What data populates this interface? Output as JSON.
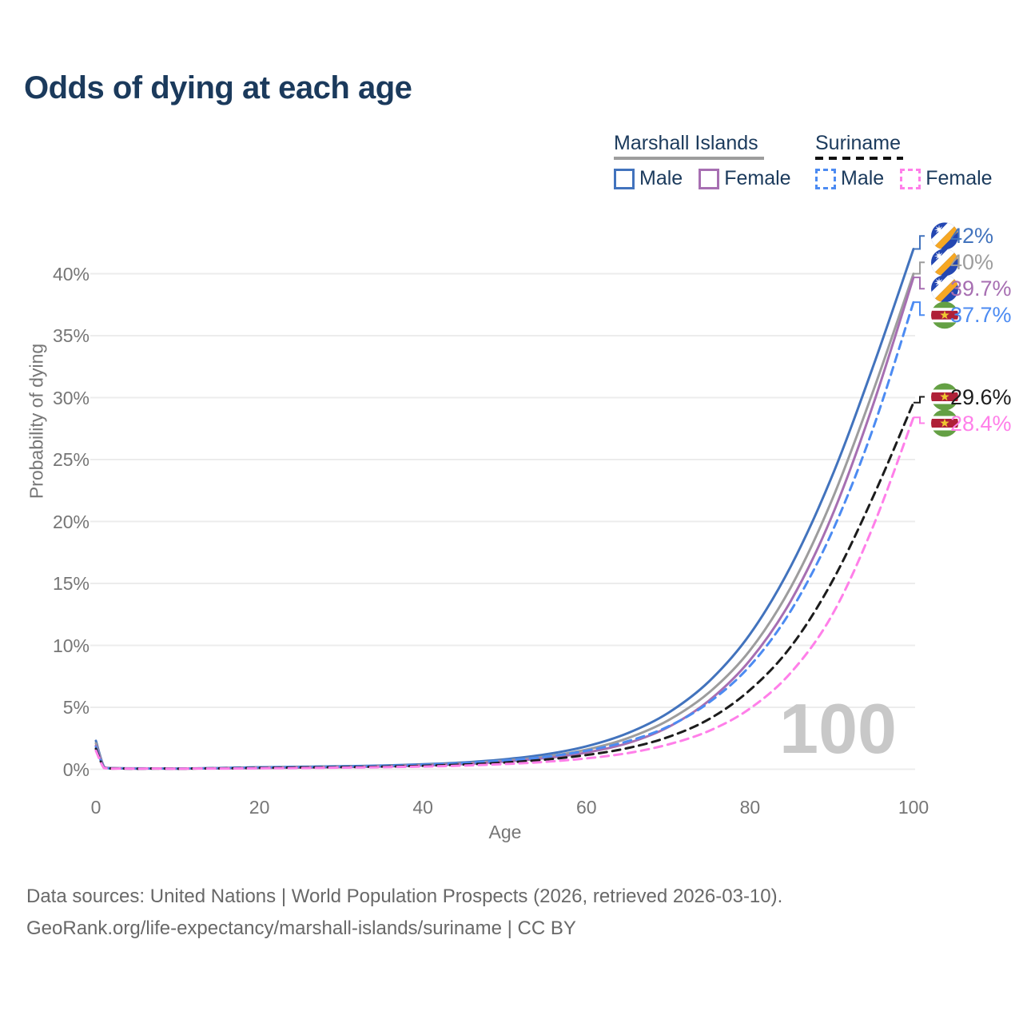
{
  "title": "Odds of dying at each age",
  "legend": {
    "groups": [
      {
        "label": "Marshall Islands",
        "underline": "solid",
        "items": [
          {
            "label": "Male"
          },
          {
            "label": "Female"
          }
        ]
      },
      {
        "label": "Suriname",
        "underline": "dashed",
        "items": [
          {
            "label": "Male"
          },
          {
            "label": "Female"
          }
        ]
      }
    ]
  },
  "chart_data": {
    "type": "line",
    "title": "Odds of dying at each age",
    "xlabel": "Age",
    "ylabel": "Probability of dying",
    "xlim": [
      0,
      100
    ],
    "ylim": [
      0,
      45
    ],
    "x_ticks": [
      0,
      20,
      40,
      60,
      80,
      100
    ],
    "y_ticks": [
      {
        "v": 0,
        "label": "0%"
      },
      {
        "v": 5,
        "label": "5%"
      },
      {
        "v": 10,
        "label": "10%"
      },
      {
        "v": 15,
        "label": "15%"
      },
      {
        "v": 20,
        "label": "20%"
      },
      {
        "v": 25,
        "label": "25%"
      },
      {
        "v": 30,
        "label": "30%"
      },
      {
        "v": 35,
        "label": "35%"
      },
      {
        "v": 40,
        "label": "40%"
      }
    ],
    "grid": "horizontal",
    "legend_position": "top-right",
    "watermark": "100",
    "x": [
      0,
      1,
      2,
      5,
      10,
      15,
      20,
      25,
      30,
      35,
      40,
      45,
      50,
      55,
      60,
      65,
      70,
      75,
      80,
      85,
      90,
      95,
      100
    ],
    "series": [
      {
        "key": "marshall-islands-male",
        "name": "Marshall Islands Male",
        "color": "#4273bd",
        "dash": null,
        "flag": "mh",
        "end_label": "42%",
        "values": [
          2.3,
          0.2,
          0.1,
          0.07,
          0.06,
          0.1,
          0.16,
          0.2,
          0.24,
          0.3,
          0.4,
          0.55,
          0.8,
          1.2,
          1.85,
          2.9,
          4.55,
          7.1,
          10.9,
          16.4,
          23.6,
          32.4,
          42.0
        ]
      },
      {
        "key": "marshall-islands-both",
        "name": "Marshall Islands Both sexes",
        "color": "#9d9d9d",
        "dash": null,
        "flag": "mh",
        "end_label": "40%",
        "values": [
          2.1,
          0.17,
          0.09,
          0.06,
          0.05,
          0.08,
          0.13,
          0.17,
          0.2,
          0.26,
          0.35,
          0.48,
          0.7,
          1.02,
          1.58,
          2.5,
          3.95,
          6.2,
          9.6,
          14.7,
          21.7,
          30.4,
          40.0
        ]
      },
      {
        "key": "marshall-islands-female",
        "name": "Marshall Islands Female",
        "color": "#a76fb2",
        "dash": null,
        "flag": "mh",
        "end_label": "39.7%",
        "values": [
          1.9,
          0.15,
          0.08,
          0.05,
          0.05,
          0.07,
          0.1,
          0.13,
          0.17,
          0.22,
          0.3,
          0.42,
          0.62,
          0.9,
          1.35,
          2.1,
          3.4,
          5.55,
          8.8,
          13.6,
          20.4,
          29.3,
          39.7
        ]
      },
      {
        "key": "suriname-male",
        "name": "Suriname Male",
        "color": "#4c8bf2",
        "dash": "10 7",
        "flag": "sr",
        "end_label": "37.7%",
        "values": [
          1.8,
          0.13,
          0.07,
          0.05,
          0.05,
          0.09,
          0.15,
          0.18,
          0.22,
          0.27,
          0.36,
          0.49,
          0.7,
          1.0,
          1.5,
          2.25,
          3.45,
          5.4,
          8.35,
          12.8,
          19.1,
          27.4,
          37.7
        ]
      },
      {
        "key": "suriname-both",
        "name": "Suriname Both sexes",
        "color": "#1c1c1c",
        "dash": "10 7",
        "flag": "sr",
        "end_label": "29.6%",
        "values": [
          1.65,
          0.11,
          0.06,
          0.04,
          0.04,
          0.07,
          0.11,
          0.14,
          0.17,
          0.21,
          0.28,
          0.38,
          0.54,
          0.78,
          1.15,
          1.7,
          2.6,
          4.05,
          6.4,
          9.9,
          15.1,
          21.9,
          29.6
        ]
      },
      {
        "key": "suriname-female",
        "name": "Suriname Female",
        "color": "#ff7fe9",
        "dash": "10 7",
        "flag": "sr",
        "end_label": "28.4%",
        "values": [
          1.5,
          0.1,
          0.05,
          0.04,
          0.03,
          0.05,
          0.08,
          0.1,
          0.13,
          0.17,
          0.22,
          0.3,
          0.42,
          0.6,
          0.88,
          1.3,
          2.0,
          3.1,
          4.9,
          7.8,
          12.4,
          19.5,
          28.4
        ]
      }
    ],
    "flag_colors": {
      "mh": {
        "blue": "#2447b2",
        "orange": "#f6a723",
        "white": "#ffffff"
      },
      "sr": {
        "green": "#64a044",
        "red": "#af2038",
        "white": "#ffffff",
        "yellow": "#eec731"
      }
    },
    "grid_color": "#ececec"
  },
  "footer": {
    "line1": "Data sources: United Nations | World Population Prospects (2026, retrieved 2026-03-10).",
    "line2": "GeoRank.org/life-expectancy/marshall-islands/suriname | CC BY"
  }
}
